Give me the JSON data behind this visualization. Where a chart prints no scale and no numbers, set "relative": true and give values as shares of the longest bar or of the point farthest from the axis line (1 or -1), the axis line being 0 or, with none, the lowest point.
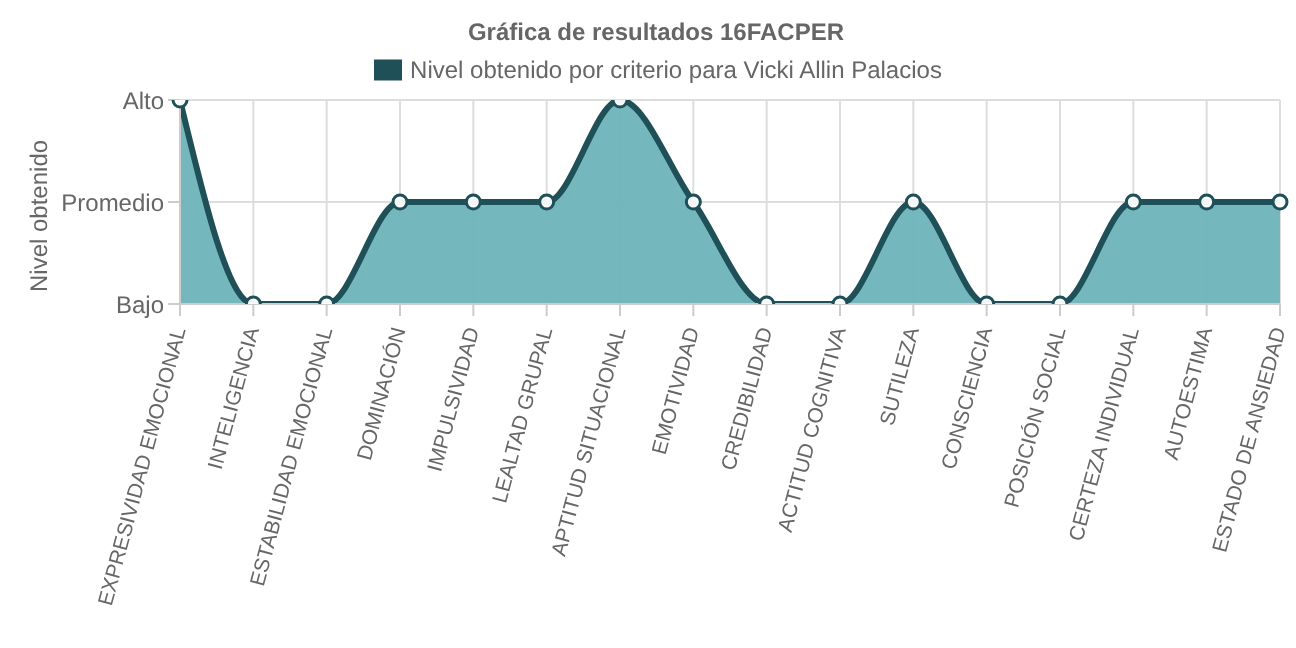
{
  "chart_data": {
    "type": "area",
    "title": "Gráfica de resultados 16FACPER",
    "ylabel": "Nivel obtenido",
    "categories": [
      "EXPRESIVIDAD EMOCIONAL",
      "INTELIGENCIA",
      "ESTABILIDAD EMOCIONAL",
      "DOMINACIÓN",
      "IMPULSIVIDAD",
      "LEALTAD GRUPAL",
      "APTITUD SITUACIONAL",
      "EMOTIVIDAD",
      "CREDIBILIDAD",
      "ACTITUD COGNITIVA",
      "SUTILEZA",
      "CONSCIENCIA",
      "POSICIÓN SOCIAL",
      "CERTEZA INDIVIDUAL",
      "AUTOESTIMA",
      "ESTADO DE ANSIEDAD"
    ],
    "series": [
      {
        "name": "Nivel obtenido por criterio para Vicki Allin Palacios",
        "color": "#6db3b8",
        "values": [
          1,
          0,
          0,
          0.5,
          0.5,
          0.5,
          1,
          0.5,
          0,
          0,
          0.5,
          0,
          0,
          0.5,
          0.5,
          0.5
        ]
      }
    ],
    "relative": true,
    "annotations": [
      "Alto",
      "Promedio",
      "Bajo"
    ],
    "grid": true,
    "legend": "top",
    "marker": "circle",
    "line_style": "solid"
  }
}
